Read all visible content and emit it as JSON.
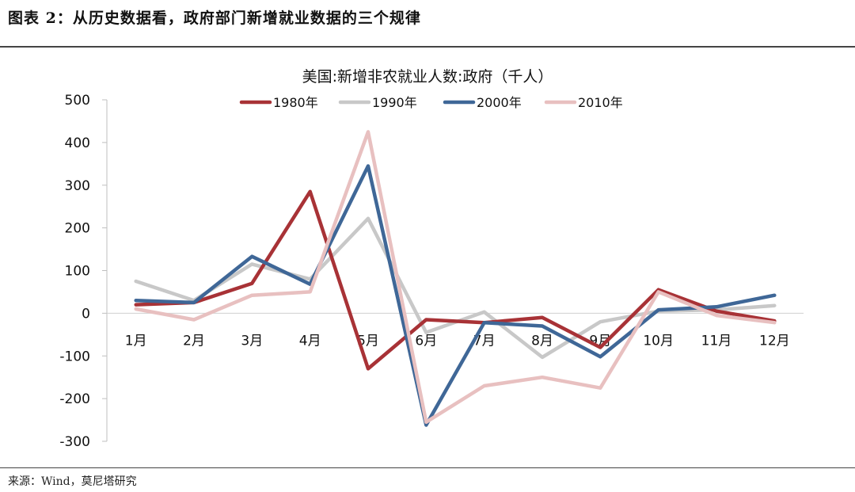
{
  "caption": "图表 2：从历史数据看，政府部门新增就业数据的三个规律",
  "source": "来源：Wind，莫尼塔研究",
  "chart_data": {
    "type": "line",
    "title": "美国:新增非农就业人数:政府（千人）",
    "categories": [
      "1月",
      "2月",
      "3月",
      "4月",
      "5月",
      "6月",
      "7月",
      "8月",
      "9月",
      "10月",
      "11月",
      "12月"
    ],
    "ylim": [
      -300,
      500
    ],
    "yticks": [
      500,
      400,
      300,
      200,
      100,
      0,
      -100,
      -200,
      -300
    ],
    "legend_position": "top",
    "series": [
      {
        "name": "1980年",
        "color": "#a83236",
        "values": [
          20,
          25,
          70,
          285,
          -130,
          -15,
          -22,
          -10,
          -80,
          55,
          5,
          -18
        ]
      },
      {
        "name": "1990年",
        "color": "#c8c8c8",
        "values": [
          75,
          30,
          115,
          80,
          222,
          -45,
          3,
          -103,
          -20,
          5,
          8,
          18
        ]
      },
      {
        "name": "2000年",
        "color": "#3f6797",
        "values": [
          30,
          25,
          133,
          68,
          345,
          -262,
          -22,
          -30,
          -102,
          8,
          15,
          42
        ]
      },
      {
        "name": "2010年",
        "color": "#e8c0c0",
        "values": [
          10,
          -15,
          42,
          50,
          425,
          -255,
          -170,
          -150,
          -175,
          50,
          -5,
          -22
        ]
      }
    ]
  }
}
